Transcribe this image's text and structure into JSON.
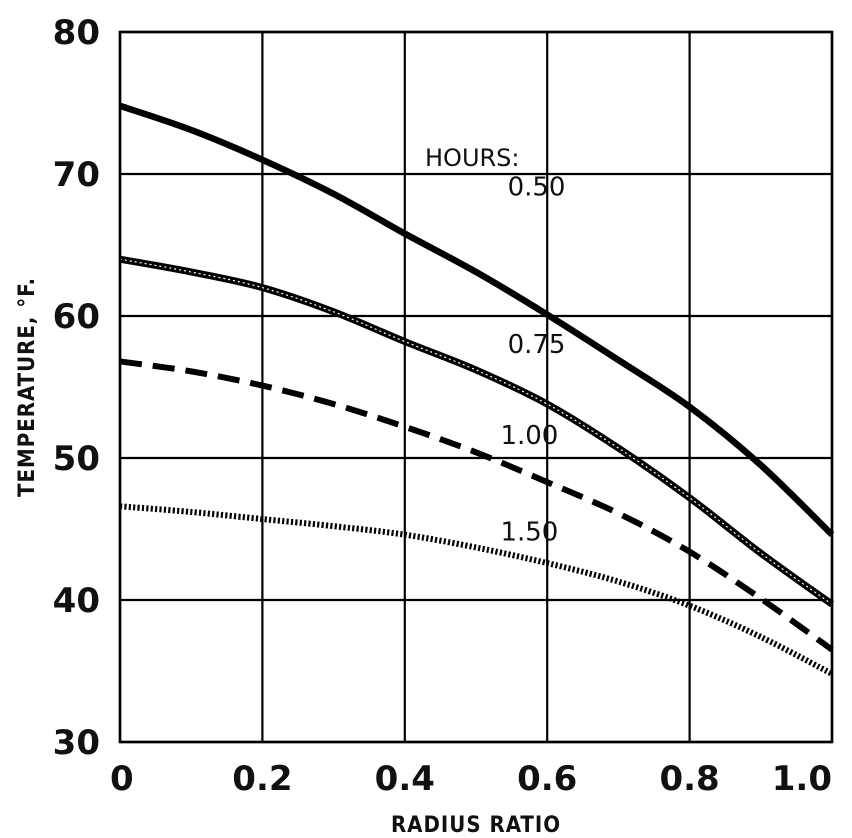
{
  "chart_data": {
    "type": "line",
    "title": "",
    "xlabel": "RADIUS RATIO",
    "ylabel": "TEMPERATURE, °F.",
    "xlim": [
      0,
      1.0
    ],
    "ylim": [
      30,
      80
    ],
    "x_ticks": [
      "0",
      "0.2",
      "0.4",
      "0.6",
      "0.8",
      "1.0"
    ],
    "y_ticks": [
      "30",
      "40",
      "50",
      "60",
      "70",
      "80"
    ],
    "grid": true,
    "legend_title": "HOURS:",
    "series": [
      {
        "name": "0.50",
        "style": "solid",
        "x": [
          0,
          0.1,
          0.2,
          0.3,
          0.4,
          0.5,
          0.6,
          0.7,
          0.8,
          0.9,
          1.0
        ],
        "y": [
          74.8,
          73.1,
          71.0,
          68.6,
          65.8,
          63.1,
          60.1,
          56.9,
          53.6,
          49.5,
          44.6
        ]
      },
      {
        "name": "0.75",
        "style": "hatched",
        "x": [
          0,
          0.1,
          0.2,
          0.3,
          0.4,
          0.5,
          0.6,
          0.7,
          0.8,
          0.9,
          1.0
        ],
        "y": [
          64.0,
          63.1,
          62.0,
          60.3,
          58.2,
          56.2,
          53.8,
          50.7,
          47.2,
          43.3,
          39.7
        ]
      },
      {
        "name": "1.00",
        "style": "dashed",
        "x": [
          0,
          0.1,
          0.2,
          0.3,
          0.4,
          0.5,
          0.6,
          0.7,
          0.8,
          0.9,
          1.0
        ],
        "y": [
          56.8,
          56.1,
          55.1,
          53.8,
          52.2,
          50.4,
          48.3,
          46.1,
          43.4,
          40.1,
          36.5
        ]
      },
      {
        "name": "1.50",
        "style": "dotted",
        "x": [
          0,
          0.1,
          0.2,
          0.3,
          0.4,
          0.5,
          0.6,
          0.7,
          0.8,
          0.9,
          1.0
        ],
        "y": [
          46.6,
          46.2,
          45.7,
          45.2,
          44.6,
          43.7,
          42.6,
          41.3,
          39.6,
          37.4,
          34.8
        ]
      }
    ]
  }
}
